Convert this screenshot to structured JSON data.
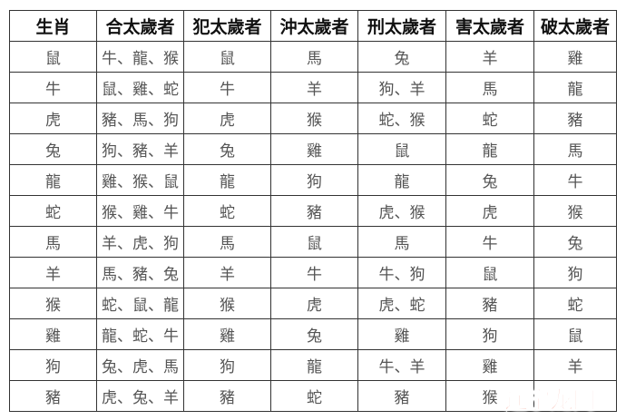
{
  "table": {
    "headers": [
      "生肖",
      "合太歲者",
      "犯太歲者",
      "沖太歲者",
      "刑太歲者",
      "害太歲者",
      "破太歲者"
    ],
    "rows": [
      [
        "鼠",
        "牛、龍、猴",
        "鼠",
        "馬",
        "兔",
        "羊",
        "雞"
      ],
      [
        "牛",
        "鼠、雞、蛇",
        "牛",
        "羊",
        "狗、羊",
        "馬",
        "龍"
      ],
      [
        "虎",
        "豬、馬、狗",
        "虎",
        "猴",
        "蛇、猴",
        "蛇",
        "豬"
      ],
      [
        "兔",
        "狗、豬、羊",
        "兔",
        "雞",
        "鼠",
        "龍",
        "馬"
      ],
      [
        "龍",
        "雞、猴、鼠",
        "龍",
        "狗",
        "龍",
        "兔",
        "牛"
      ],
      [
        "蛇",
        "猴、雞、牛",
        "蛇",
        "豬",
        "虎、猴",
        "虎",
        "猴"
      ],
      [
        "馬",
        "羊、虎、狗",
        "馬",
        "鼠",
        "馬",
        "牛",
        "兔"
      ],
      [
        "羊",
        "馬、豬、兔",
        "羊",
        "牛",
        "牛、狗",
        "鼠",
        "狗"
      ],
      [
        "猴",
        "蛇、鼠、龍",
        "猴",
        "虎",
        "虎、蛇",
        "豬",
        "蛇"
      ],
      [
        "雞",
        "龍、蛇、牛",
        "雞",
        "兔",
        "雞",
        "狗",
        "鼠"
      ],
      [
        "狗",
        "兔、虎、馬",
        "狗",
        "龍",
        "牛、羊",
        "雞",
        "羊"
      ],
      [
        "豬",
        "虎、兔、羊",
        "豬",
        "蛇",
        "豬",
        "猴",
        ""
      ]
    ]
  },
  "watermark": {
    "text": "辽宁龙网",
    "color": "#e8482a"
  }
}
